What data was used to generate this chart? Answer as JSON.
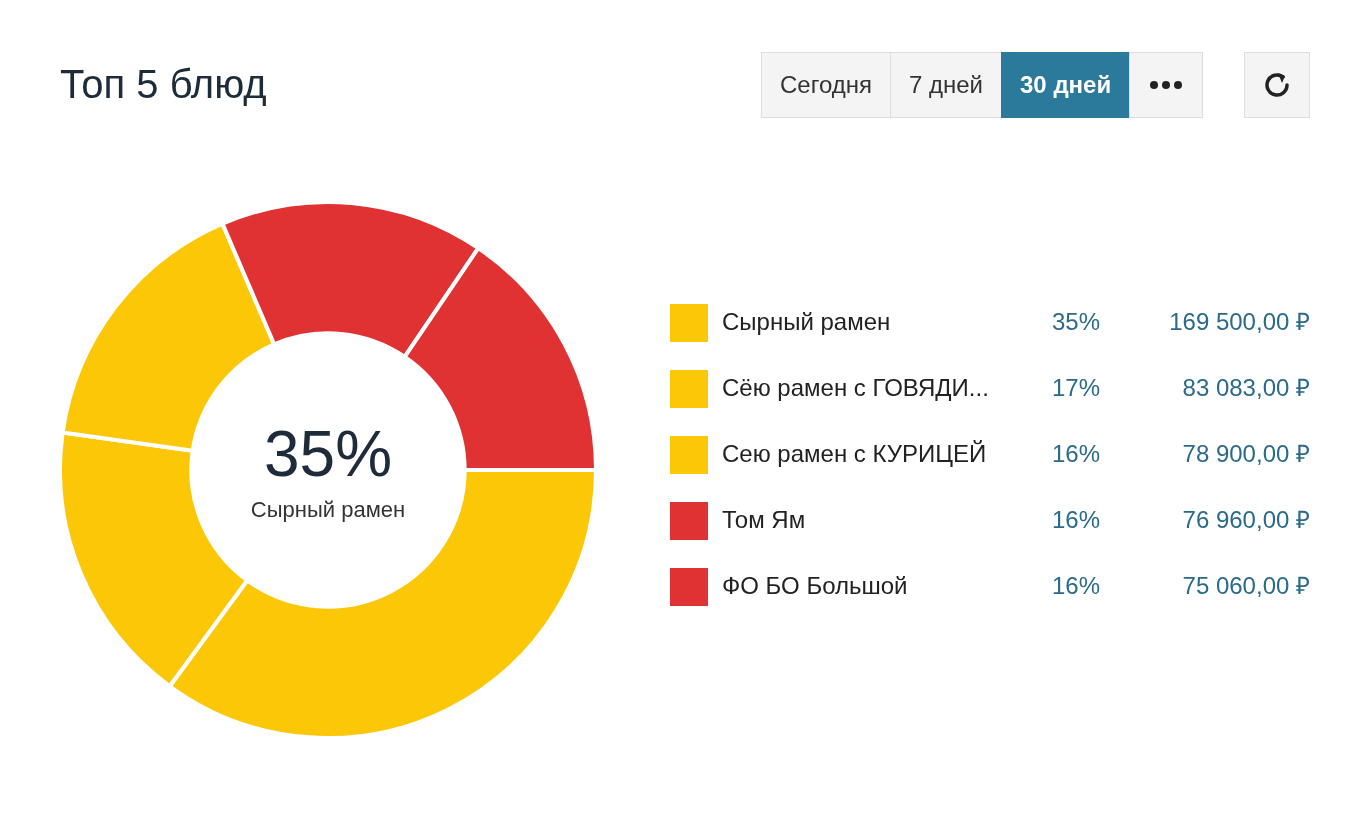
{
  "chart_data": {
    "type": "donut",
    "title": "Топ 5 блюд",
    "categories": [
      "Сырный рамен",
      "Сёю рамен с ГОВЯДИ...",
      "Сею рамен с КУРИЦЕЙ",
      "Том Ям",
      "ФО БО Большой"
    ],
    "values": [
      169500,
      83083,
      78900,
      76960,
      75060
    ],
    "colors": [
      "#fbc707",
      "#fbc707",
      "#fbc707",
      "#e03232",
      "#e03232"
    ],
    "value_labels": [
      "169 500,00 ₽",
      "83 083,00 ₽",
      "78 900,00 ₽",
      "76 960,00 ₽",
      "75 060,00 ₽"
    ],
    "annotations": [
      "35%",
      "17%",
      "16%",
      "16%",
      "16%",
      "Сегодня",
      "7 дней",
      "30 дней"
    ],
    "legend": "right"
  }
}
